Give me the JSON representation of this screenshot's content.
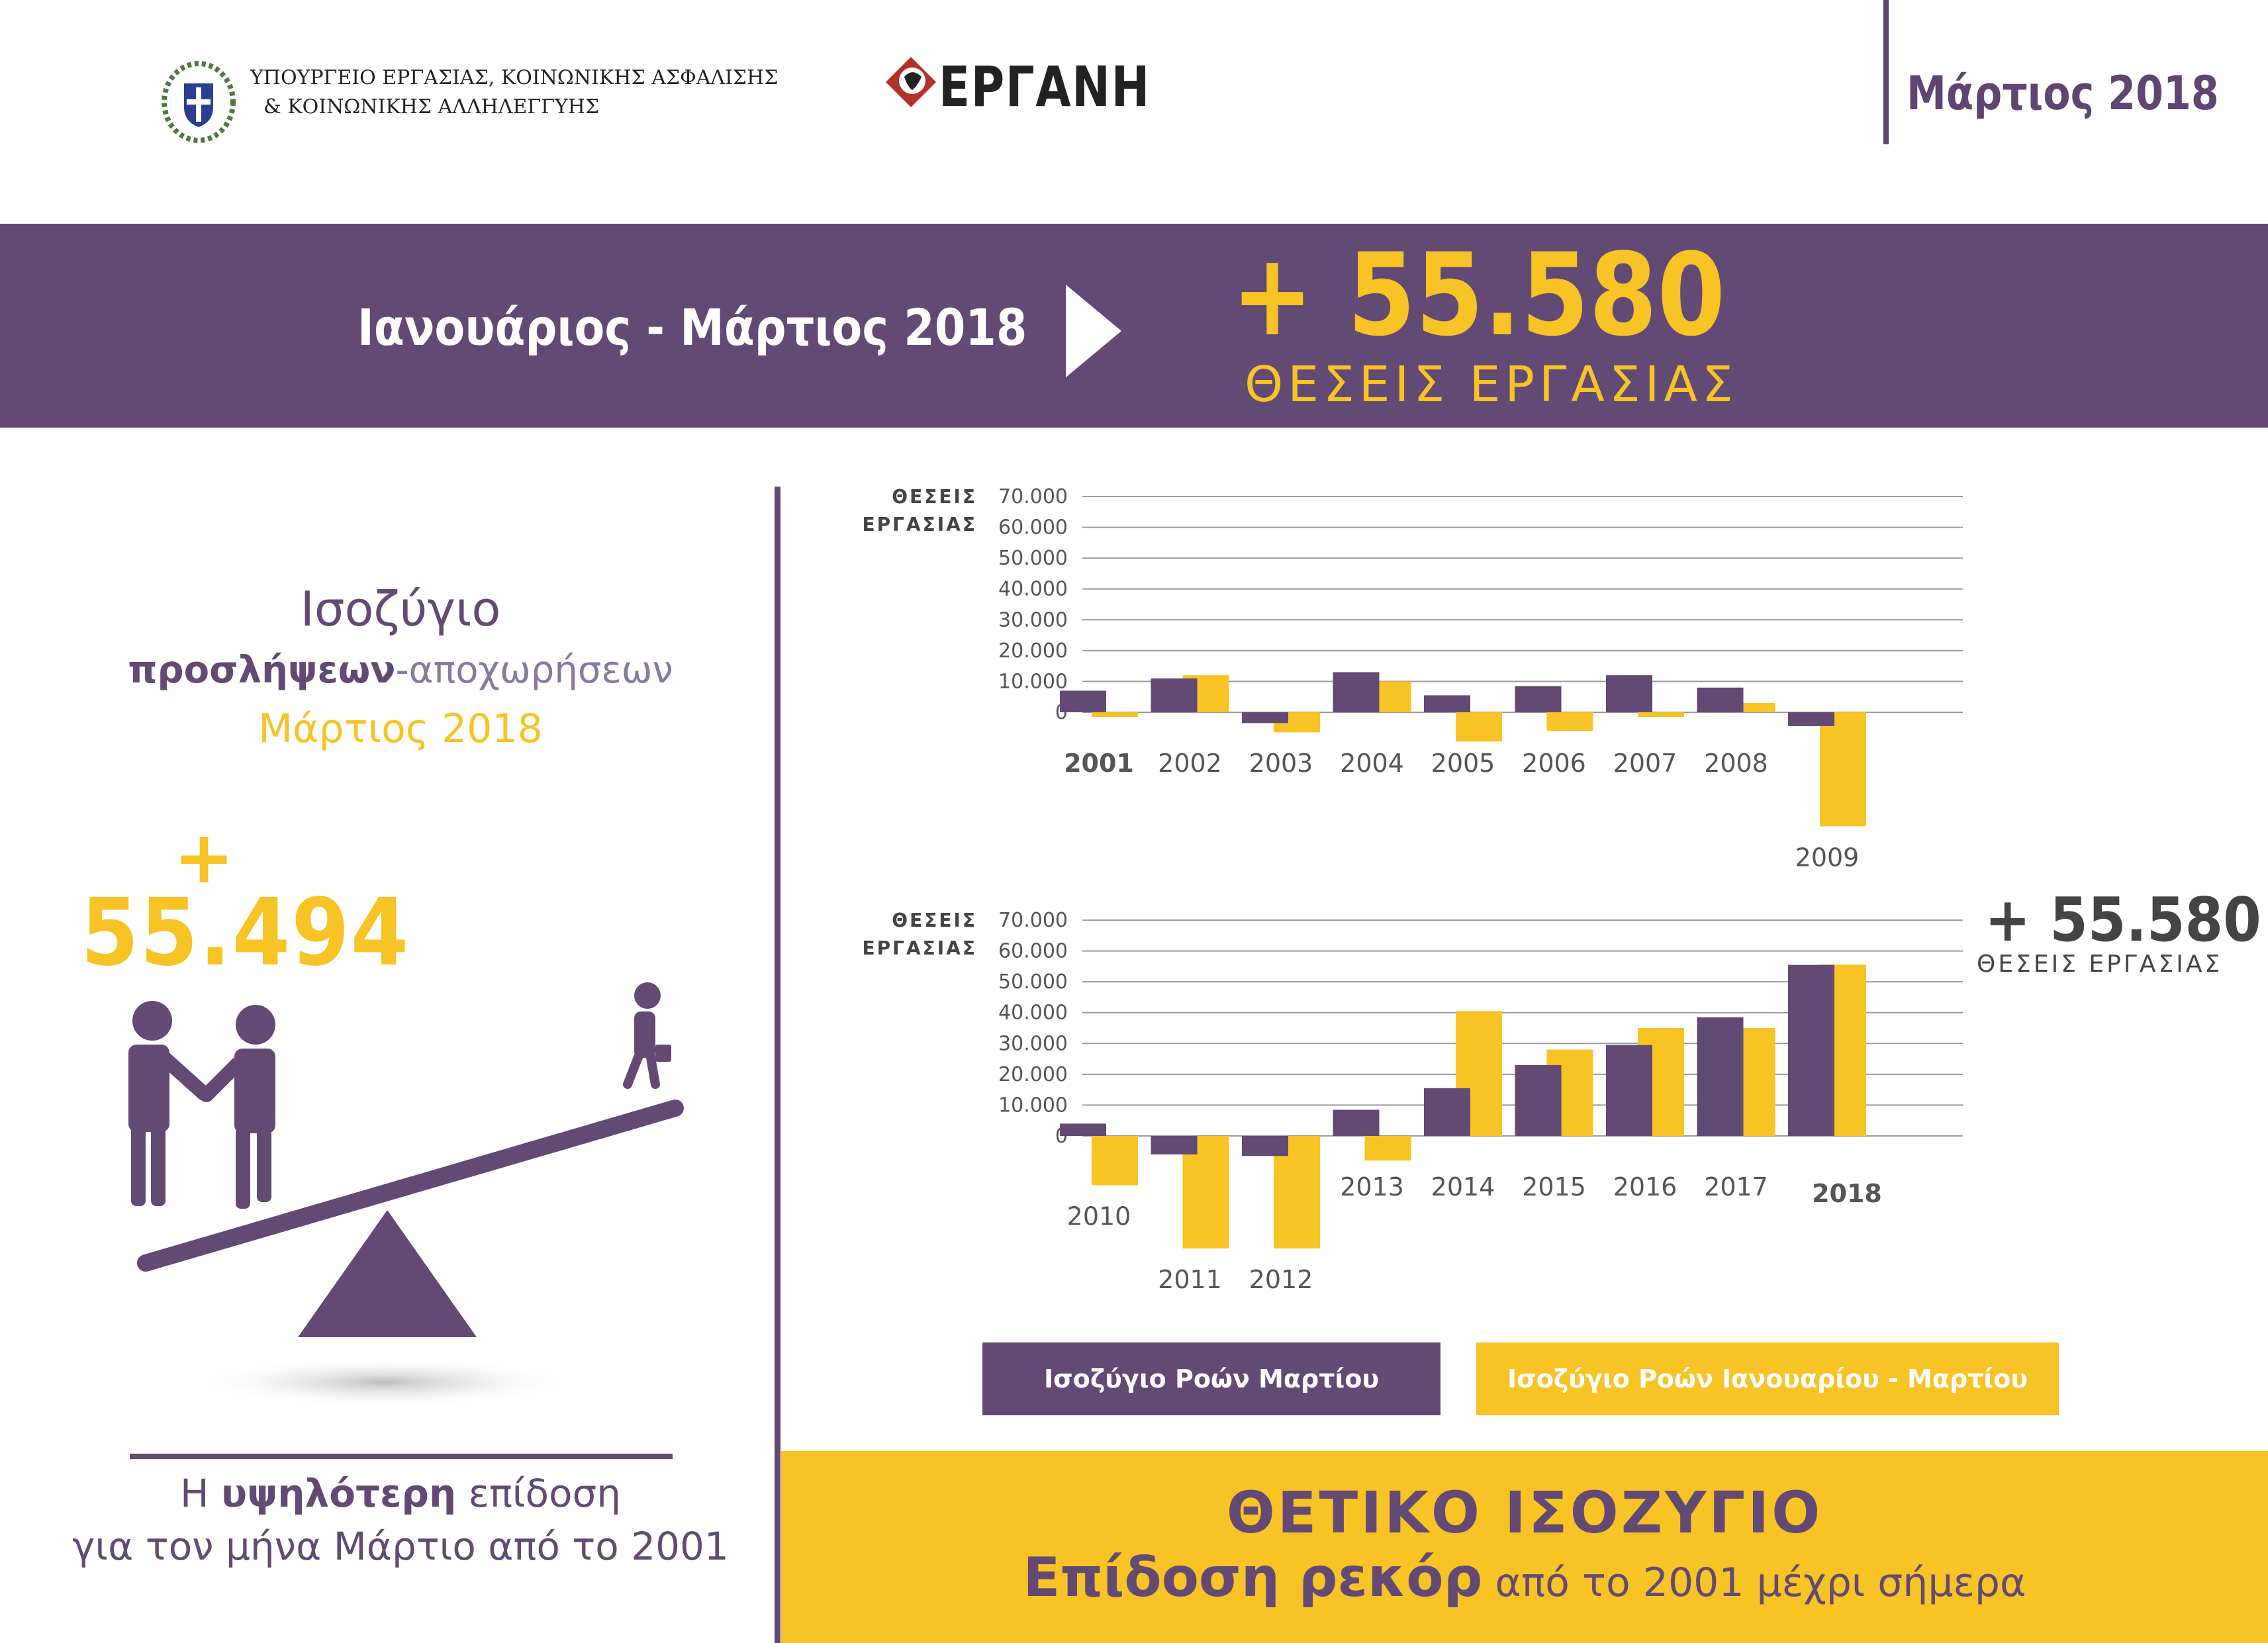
{
  "header": {
    "ministry_line1": "ΥΠΟΥΡΓΕΙΟ ΕΡΓΑΣΙΑΣ, ΚΟΙΝΩΝΙΚΗΣ ΑΣΦΑΛΙΣΗΣ",
    "ministry_line2": "& ΚΟΙΝΩΝΙΚΗΣ ΑΛΛΗΛΕΓΓΥΗΣ",
    "logo_text": "ΕΡΓΑΝΗ",
    "month": "Μάρτιος 2018"
  },
  "banner": {
    "period": "Ιανουάριος - Μάρτιος 2018",
    "value": "+ 55.580",
    "unit": "ΘΕΣΕΙΣ ΕΡΓΑΣΙΑΣ"
  },
  "left": {
    "title": "Ισοζύγιο",
    "subtitle_bold": "προσλήψεων",
    "subtitle_rest": "-αποχωρήσεων",
    "month": "Μάρτιος 2018",
    "plus": "+",
    "value": "55.494",
    "note_pre": "Η ",
    "note_bold": "υψηλότερη",
    "note_post": " επίδοση",
    "note_line2": "για τον μήνα Μάρτιο από το 2001"
  },
  "charts": {
    "ylabel_line1": "ΘΕΣΕΙΣ",
    "ylabel_line2": "ΕΡΓΑΣΙΑΣ",
    "total_value": "+ 55.580",
    "total_unit": "ΘΕΣΕΙΣ ΕΡΓΑΣΙΑΣ"
  },
  "legend": {
    "march": "Ισοζύγιο Ροών Μαρτίου",
    "jan_mar": "Ισοζύγιο Ροών Ιανουαρίου - Μαρτίου"
  },
  "bottom": {
    "title": "ΘΕΤΙΚΟ ΙΣΟΖΥΓΙΟ",
    "sub_bold": "Επίδοση ρεκόρ",
    "sub_rest": " από το 2001 μέχρι σήμερα"
  },
  "colors": {
    "purple": "#624a75",
    "yellow": "#f7c325"
  },
  "chart_data": [
    {
      "type": "bar",
      "categories": [
        "2001",
        "2002",
        "2003",
        "2004",
        "2005",
        "2006",
        "2007",
        "2008",
        "2009"
      ],
      "series": [
        {
          "name": "Ισοζύγιο Ροών Μαρτίου",
          "values": [
            7000,
            11000,
            -3500,
            13000,
            5500,
            8500,
            12000,
            8000,
            -4500
          ]
        },
        {
          "name": "Ισοζύγιο Ροών Ιανουαρίου - Μαρτίου",
          "values": [
            -1500,
            12000,
            -6500,
            10000,
            -9500,
            -6000,
            -1500,
            3000,
            -37000
          ]
        }
      ],
      "yticks": [
        "70.000",
        "60.000",
        "50.000",
        "40.000",
        "30.000",
        "20.000",
        "10.000",
        "0"
      ],
      "ylabel": "ΘΕΣΕΙΣ ΕΡΓΑΣΙΑΣ",
      "ylim": [
        -40000,
        70000
      ],
      "highlight": "2001"
    },
    {
      "type": "bar",
      "categories": [
        "2010",
        "2011",
        "2012",
        "2013",
        "2014",
        "2015",
        "2016",
        "2017",
        "2018"
      ],
      "series": [
        {
          "name": "Ισοζύγιο Ροών Μαρτίου",
          "values": [
            4000,
            -6000,
            -6500,
            8500,
            15500,
            23000,
            29500,
            38500,
            55494
          ]
        },
        {
          "name": "Ισοζύγιο Ροών Ιανουαρίου - Μαρτίου",
          "values": [
            -16000,
            -36500,
            -36500,
            -8000,
            40500,
            28000,
            35000,
            35000,
            55580
          ]
        }
      ],
      "yticks": [
        "70.000",
        "60.000",
        "50.000",
        "40.000",
        "30.000",
        "20.000",
        "10.000",
        "0"
      ],
      "ylabel": "ΘΕΣΕΙΣ ΕΡΓΑΣΙΑΣ",
      "ylim": [
        -40000,
        70000
      ],
      "highlight": "2018"
    }
  ]
}
